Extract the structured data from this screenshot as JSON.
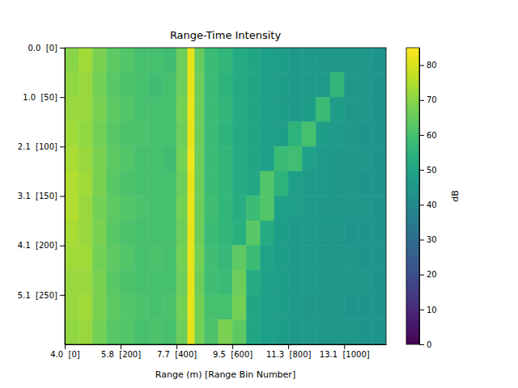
{
  "chart_data": {
    "type": "heatmap",
    "title": "Range-Time Intensity",
    "x_label": "Range (m) [Range Bin Number]",
    "xlim": [
      0,
      1150
    ],
    "xticks": [
      {
        "value": 0,
        "label": "4.0  [0]"
      },
      {
        "value": 200,
        "label": "5.8  [200]"
      },
      {
        "value": 400,
        "label": "7.7  [400]"
      },
      {
        "value": 600,
        "label": "9.5  [600]"
      },
      {
        "value": 800,
        "label": "11.3  [800]"
      },
      {
        "value": 1000,
        "label": "13.1  [1000]"
      }
    ],
    "ylim": [
      0,
      300
    ],
    "yticks": [
      {
        "value": 0,
        "label": "0.0  [0]"
      },
      {
        "value": 50,
        "label": "1.0  [50]"
      },
      {
        "value": 100,
        "label": "2.1  [100]"
      },
      {
        "value": 150,
        "label": "3.1  [150]"
      },
      {
        "value": 200,
        "label": "4.1  [200]"
      },
      {
        "value": 250,
        "label": "5.1  [250]"
      }
    ],
    "color": "viridis",
    "zlim": [
      0,
      85
    ],
    "zticks": [
      0,
      10,
      20,
      30,
      40,
      50,
      60,
      70,
      80
    ],
    "z_label": "dB",
    "x_edges": [
      0,
      50,
      100,
      150,
      200,
      250,
      300,
      350,
      400,
      440,
      465,
      500,
      550,
      600,
      650,
      700,
      750,
      800,
      850,
      900,
      950,
      1000,
      1050,
      1100,
      1150
    ],
    "y_edges": [
      0,
      25,
      50,
      75,
      100,
      125,
      150,
      175,
      200,
      225,
      250,
      275,
      300
    ],
    "z": [
      [
        70,
        73,
        68,
        64,
        62,
        60,
        60,
        59,
        66,
        82,
        65,
        58,
        56,
        52,
        50,
        48,
        47,
        46,
        46,
        45,
        45,
        45,
        45,
        44
      ],
      [
        71,
        72,
        67,
        63,
        61,
        60,
        59,
        60,
        66,
        82,
        66,
        58,
        55,
        52,
        50,
        48,
        47,
        46,
        46,
        46,
        56,
        45,
        45,
        44
      ],
      [
        72,
        72,
        68,
        64,
        62,
        60,
        60,
        60,
        67,
        82,
        66,
        58,
        56,
        52,
        50,
        48,
        47,
        46,
        47,
        58,
        47,
        45,
        45,
        44
      ],
      [
        73,
        71,
        67,
        63,
        61,
        61,
        60,
        60,
        66,
        82,
        66,
        58,
        55,
        52,
        50,
        48,
        47,
        55,
        60,
        47,
        46,
        45,
        44,
        44
      ],
      [
        74,
        72,
        68,
        64,
        62,
        60,
        60,
        59,
        67,
        83,
        66,
        58,
        56,
        52,
        50,
        48,
        58,
        59,
        48,
        46,
        45,
        45,
        45,
        44
      ],
      [
        75,
        73,
        68,
        63,
        61,
        60,
        60,
        60,
        66,
        82,
        66,
        58,
        56,
        52,
        51,
        62,
        55,
        47,
        46,
        46,
        45,
        45,
        44,
        44
      ],
      [
        75,
        72,
        67,
        64,
        62,
        61,
        60,
        60,
        67,
        82,
        66,
        59,
        56,
        53,
        58,
        62,
        48,
        47,
        46,
        45,
        45,
        45,
        45,
        44
      ],
      [
        74,
        72,
        68,
        63,
        61,
        60,
        60,
        60,
        66,
        82,
        66,
        58,
        56,
        54,
        63,
        52,
        47,
        46,
        46,
        45,
        45,
        44,
        44,
        44
      ],
      [
        73,
        73,
        67,
        64,
        62,
        60,
        61,
        60,
        67,
        82,
        67,
        59,
        57,
        64,
        58,
        49,
        47,
        46,
        46,
        45,
        45,
        45,
        44,
        44
      ],
      [
        72,
        72,
        68,
        63,
        61,
        60,
        60,
        60,
        66,
        82,
        66,
        59,
        58,
        66,
        52,
        48,
        47,
        46,
        46,
        45,
        45,
        45,
        45,
        44
      ],
      [
        72,
        73,
        68,
        64,
        62,
        61,
        60,
        61,
        67,
        82,
        67,
        60,
        60,
        67,
        50,
        48,
        47,
        46,
        45,
        45,
        45,
        44,
        44,
        44
      ],
      [
        71,
        72,
        67,
        63,
        62,
        60,
        61,
        60,
        66,
        82,
        67,
        61,
        68,
        64,
        50,
        48,
        47,
        46,
        46,
        45,
        45,
        45,
        44,
        44
      ]
    ]
  }
}
